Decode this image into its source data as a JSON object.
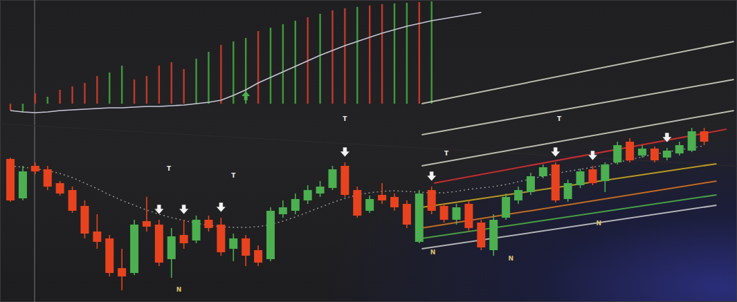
{
  "chart_data": {
    "type": "candlestick",
    "xlim": [
      -0.84,
      58.65
    ],
    "ylim": [
      0,
      437
    ],
    "y2lim": [
      -287,
      150
    ],
    "tick_labels": false,
    "grid": false,
    "series": [
      {
        "type": "candlestick",
        "open": [
          207,
          150,
          197,
          192,
          172,
          162,
          139,
          102,
          92,
          49,
          42,
          117,
          112,
          62,
          97,
          89,
          119,
          112,
          77,
          92,
          75,
          62,
          127,
          132,
          147,
          157,
          165,
          197,
          162,
          132,
          155,
          152,
          142,
          87,
          162,
          139,
          119,
          142,
          115,
          75,
          122,
          147,
          159,
          182,
          199,
          149,
          169,
          192,
          175,
          202,
          232,
          212,
          222,
          209,
          215,
          219,
          247
        ],
        "high": [
          209,
          197,
          202,
          197,
          175,
          167,
          147,
          127,
          97,
          77,
          119,
          152,
          119,
          107,
          119,
          125,
          125,
          122,
          99,
          97,
          82,
          137,
          147,
          157,
          169,
          175,
          197,
          202,
          167,
          154,
          172,
          157,
          147,
          162,
          167,
          142,
          142,
          147,
          119,
          127,
          157,
          167,
          187,
          199,
          202,
          177,
          193,
          197,
          202,
          232,
          237,
          227,
          225,
          223,
          232,
          252,
          252
        ],
        "low": [
          145,
          147,
          185,
          162,
          154,
          129,
          92,
          77,
          37,
          17,
          39,
          102,
          52,
          35,
          77,
          85,
          102,
          67,
          59,
          52,
          52,
          59,
          122,
          127,
          142,
          152,
          162,
          152,
          122,
          129,
          142,
          132,
          107,
          85,
          127,
          115,
          112,
          102,
          75,
          67,
          119,
          142,
          155,
          179,
          144,
          145,
          165,
          169,
          159,
          199,
          202,
          209,
          202,
          205,
          212,
          217,
          227
        ],
        "close": [
          147,
          189,
          189,
          167,
          157,
          132,
          99,
          87,
          42,
          37,
          112,
          109,
          57,
          95,
          85,
          119,
          107,
          72,
          92,
          67,
          57,
          132,
          137,
          149,
          162,
          167,
          192,
          155,
          125,
          149,
          147,
          137,
          112,
          157,
          132,
          119,
          137,
          107,
          79,
          119,
          152,
          162,
          182,
          195,
          147,
          172,
          189,
          172,
          199,
          227,
          205,
          222,
          205,
          219,
          227,
          247,
          232
        ]
      },
      {
        "type": "line",
        "line_style": "dotted",
        "color": "#9a9a9a",
        "values": [
          197,
          195,
          193,
          190,
          186,
          180,
          172,
          164,
          155,
          147,
          140,
          133,
          127,
          122,
          118,
          114,
          111,
          109,
          108,
          108,
          109,
          112,
          117,
          123,
          130,
          137,
          144,
          150,
          155,
          158,
          160,
          161,
          160,
          159,
          158,
          158,
          160,
          163,
          165,
          167,
          170,
          174,
          178,
          182,
          186,
          189,
          192,
          195,
          198,
          202,
          206,
          210,
          214,
          217,
          220,
          223,
          226
        ]
      },
      {
        "type": "bar",
        "axis": "y2",
        "values": [
          -10,
          -12,
          15,
          10,
          20,
          25,
          30,
          40,
          45,
          55,
          35,
          40,
          55,
          60,
          50,
          65,
          75,
          85,
          90,
          95,
          105,
          110,
          115,
          120,
          125,
          130,
          135,
          138,
          140,
          142,
          144,
          145,
          146,
          147,
          148,
          null,
          null,
          null,
          null,
          null,
          null,
          null,
          null,
          null,
          null,
          null,
          null,
          null,
          null,
          null,
          null,
          null,
          null,
          null,
          null,
          null,
          null
        ],
        "colors": [
          "#c0392b",
          "#3f9a3a",
          "#c0392b",
          "#3f9a3a",
          "#c0392b",
          "#c0392b",
          "#c0392b",
          "#c0392b",
          "#3f9a3a",
          "#3f9a3a",
          "#c0392b",
          "#c0392b",
          "#c0392b",
          "#c0392b",
          "#c0392b",
          "#3f9a3a",
          "#3f9a3a",
          "#c0392b",
          "#3f9a3a",
          "#3f9a3a",
          "#c0392b",
          "#3f9a3a",
          "#3f9a3a",
          "#3f9a3a",
          "#c0392b",
          "#3f9a3a",
          "#c0392b",
          "#c0392b",
          "#3f9a3a",
          "#c0392b",
          "#c0392b",
          "#3f9a3a",
          "#3f9a3a",
          "#c0392b",
          "#3f9a3a",
          "#c0392b",
          "#c0392b",
          "#c0392b",
          "#c0392b",
          "#c0392b",
          "#c0392b",
          "#c0392b",
          "#c0392b",
          "#c0392b",
          "#c0392b",
          "#c0392b",
          "#c0392b",
          "#c0392b",
          "#c0392b",
          "#c0392b",
          "#c0392b",
          "#c0392b",
          "#c0392b",
          "#c0392b",
          "#c0392b",
          "#c0392b",
          "#c0392b"
        ]
      },
      {
        "type": "line",
        "axis": "y2",
        "color": "#c8c8d8",
        "values": [
          -10,
          -12,
          -13,
          -12,
          -10,
          -9,
          -8,
          -7,
          -6,
          -6,
          -5,
          -4,
          -4,
          -3,
          -2,
          0,
          2,
          5,
          12,
          20,
          30,
          38,
          46,
          54,
          62,
          70,
          77,
          84,
          90,
          96,
          102,
          107,
          112,
          116,
          120,
          123,
          126,
          129,
          132,
          null,
          null,
          null,
          null,
          null,
          null,
          null,
          null,
          null,
          null,
          null,
          null,
          null,
          null,
          null,
          null,
          null,
          null
        ]
      }
    ],
    "lines": [
      {
        "x": [
          33.2,
          58.4
        ],
        "y": [
          287,
          377
        ],
        "color": "#d8d8c8"
      },
      {
        "x": [
          33.2,
          58.4
        ],
        "y": [
          242,
          322
        ],
        "color": "#d8d8c8"
      },
      {
        "x": [
          33.2,
          58.4
        ],
        "y": [
          197,
          277
        ],
        "color": "#d8d8c8"
      },
      {
        "x": [
          34.2,
          57.8
        ],
        "y": [
          172,
          250
        ],
        "color": "#e03030"
      },
      {
        "x": [
          33.2,
          57
        ],
        "y": [
          137,
          200
        ],
        "color": "#d4b020"
      },
      {
        "x": [
          33.2,
          57
        ],
        "y": [
          107,
          175
        ],
        "color": "#e07a20"
      },
      {
        "x": [
          33.2,
          57
        ],
        "y": [
          92,
          155
        ],
        "color": "#50b848"
      },
      {
        "x": [
          33.2,
          57
        ],
        "y": [
          77,
          140
        ],
        "color": "#cfcfcf"
      }
    ],
    "signals": {
      "down": [
        12,
        14,
        17,
        27,
        34,
        44,
        47,
        53
      ],
      "up": [
        19
      ]
    },
    "annotations": [
      {
        "text": "T",
        "x": 12.8,
        "y": 190
      },
      {
        "text": "T",
        "x": 18.0,
        "y": 180
      },
      {
        "text": "T",
        "x": 27.0,
        "y": 262
      },
      {
        "text": "T",
        "x": 35.2,
        "y": 212
      },
      {
        "text": "T",
        "x": 44.3,
        "y": 262
      },
      {
        "text": "N",
        "x": 13.6,
        "y": 15
      },
      {
        "text": "N",
        "x": 34.1,
        "y": 69
      },
      {
        "text": "N",
        "x": 40.4,
        "y": 60
      },
      {
        "text": "N",
        "x": 47.5,
        "y": 111
      }
    ]
  }
}
